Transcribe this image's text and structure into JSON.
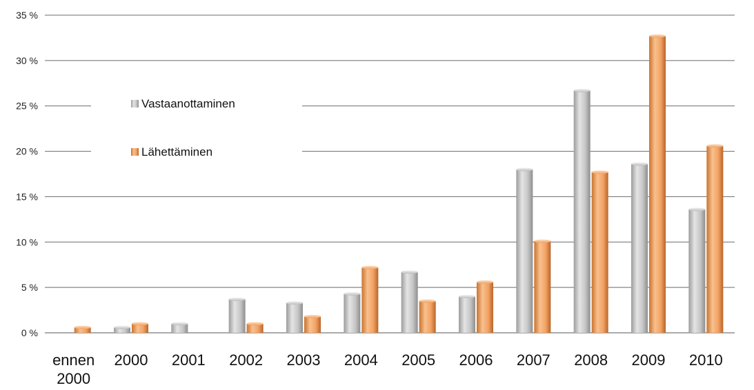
{
  "chart_data": {
    "type": "bar",
    "categories": [
      "ennen 2000",
      "2000",
      "2001",
      "2002",
      "2003",
      "2004",
      "2005",
      "2006",
      "2007",
      "2008",
      "2009",
      "2010"
    ],
    "category_lines": [
      [
        "ennen",
        "2000"
      ],
      [
        "2000"
      ],
      [
        "2001"
      ],
      [
        "2002"
      ],
      [
        "2003"
      ],
      [
        "2004"
      ],
      [
        "2005"
      ],
      [
        "2006"
      ],
      [
        "2007"
      ],
      [
        "2008"
      ],
      [
        "2009"
      ],
      [
        "2010"
      ]
    ],
    "series": [
      {
        "name": "Vastaanottaminen",
        "color": "#c4c4c4",
        "values": [
          0.0,
          0.6,
          1.0,
          3.7,
          3.3,
          4.3,
          6.7,
          4.0,
          18.0,
          26.7,
          18.6,
          13.6
        ]
      },
      {
        "name": "Lähettäminen",
        "color": "#f0a060",
        "values": [
          0.6,
          1.0,
          0.0,
          1.0,
          1.8,
          7.2,
          3.5,
          5.6,
          10.1,
          17.7,
          32.7,
          20.6
        ]
      }
    ],
    "ylim": [
      0,
      35
    ],
    "yticks": [
      0,
      5,
      10,
      15,
      20,
      25,
      30,
      35
    ],
    "ytick_labels": [
      "0 %",
      "5 %",
      "10 %",
      "15 %",
      "20 %",
      "25 %",
      "30 %",
      "35 %"
    ],
    "grid": true,
    "legend_position": "top-left",
    "title": "",
    "xlabel": "",
    "ylabel": ""
  }
}
